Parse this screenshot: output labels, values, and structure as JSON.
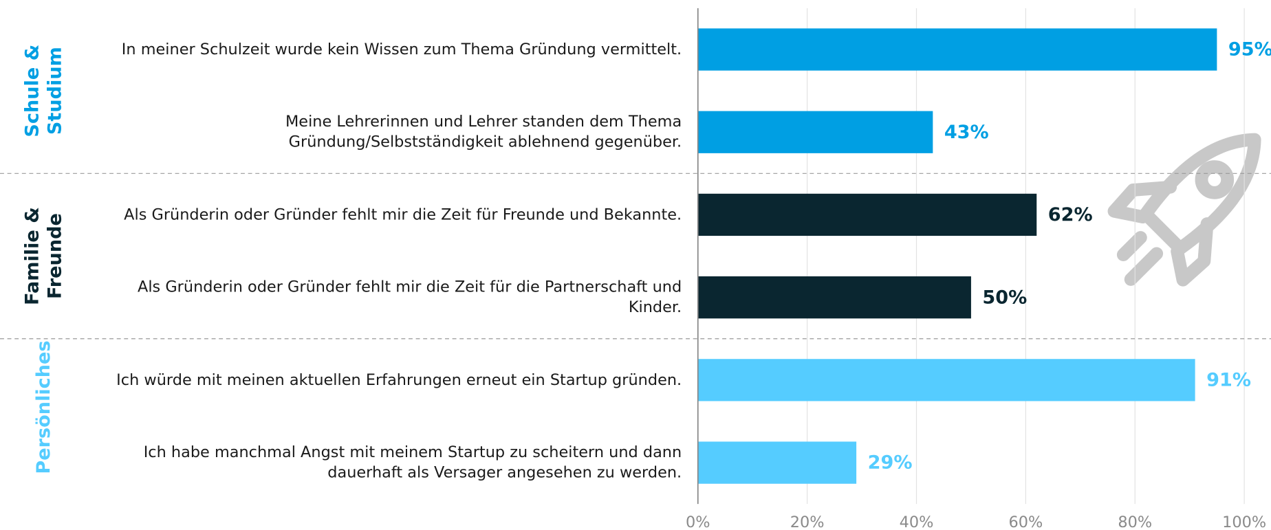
{
  "chart_data": {
    "type": "bar",
    "groups": [
      {
        "name": "Schule & Studium",
        "color": "#009fe3",
        "categories": [
          "In meiner Schulzeit wurde kein Wissen zum Thema Gründung vermittelt.",
          "Meine Lehrerinnen und Lehrer standen dem Thema Gründung/Selbstständigkeit ablehnend gegenüber."
        ],
        "values": [
          95,
          43
        ],
        "value_labels": [
          "95%",
          "43%"
        ]
      },
      {
        "name": "Familie & Freunde",
        "color": "#0a2630",
        "categories": [
          "Als Gründerin oder Gründer  fehlt mir die Zeit für Freunde und Bekannte.",
          "Als Gründerin oder Gründer fehlt mir die Zeit für die Partnerschaft und Kinder."
        ],
        "values": [
          62,
          50
        ],
        "value_labels": [
          "62%",
          "50%"
        ]
      },
      {
        "name": "Persönliches",
        "color": "#55ccff",
        "categories": [
          "Ich würde mit meinen aktuellen Erfahrungen erneut ein Startup gründen.",
          "Ich habe manchmal Angst mit meinem Startup zu scheitern und dann dauerhaft als Versager angesehen zu werden."
        ],
        "values": [
          91,
          29
        ],
        "value_labels": [
          "91%",
          "29%"
        ]
      }
    ],
    "xlim": [
      0,
      100
    ],
    "xticks": [
      {
        "value": 0,
        "label": "0%"
      },
      {
        "value": 20,
        "label": "20%"
      },
      {
        "value": 40,
        "label": "40%"
      },
      {
        "value": 60,
        "label": "60%"
      },
      {
        "value": 80,
        "label": "80%"
      },
      {
        "value": 100,
        "label": "100%"
      }
    ],
    "grid": true
  }
}
